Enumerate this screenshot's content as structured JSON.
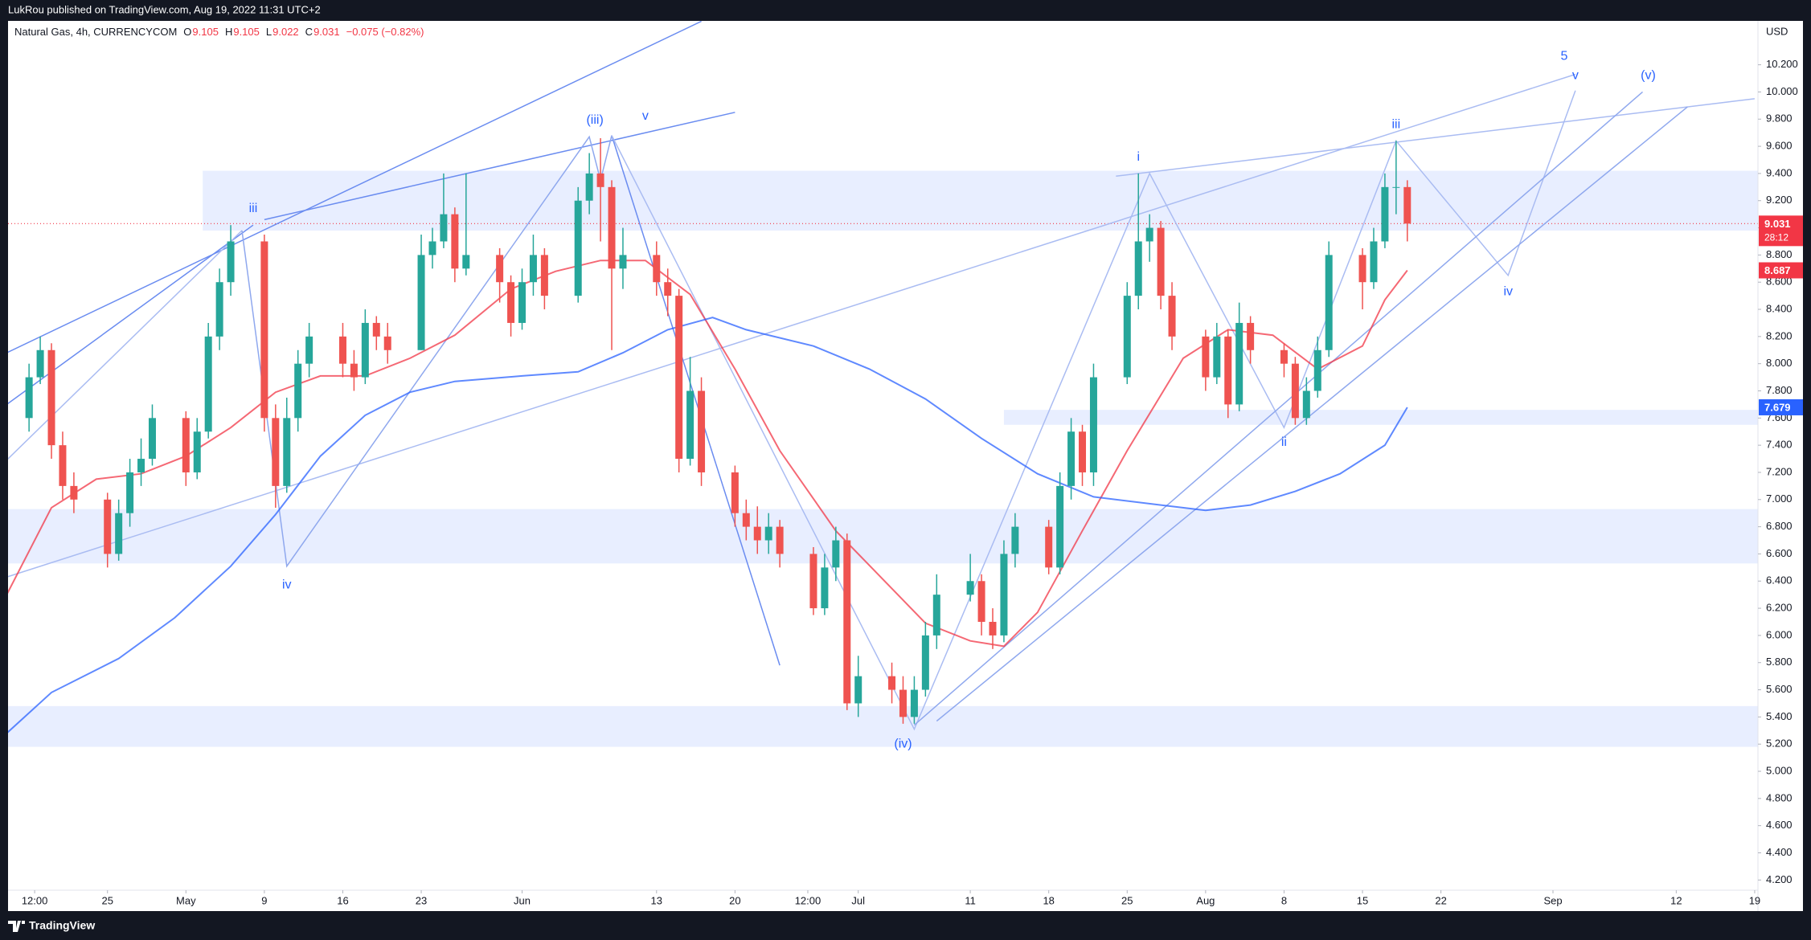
{
  "page": {
    "publisher": "LukRou published on TradingView.com, Aug 19, 2022 11:31 UTC+2",
    "brand": "TradingView"
  },
  "chart_data": {
    "type": "candlestick",
    "legend": {
      "symbol": "Natural Gas, 4h, CURRENCYCOM",
      "fields": [
        {
          "key": "O",
          "value": 9.105
        },
        {
          "key": "H",
          "value": 9.105
        },
        {
          "key": "L",
          "value": 9.022
        }
      ],
      "close_key": "C",
      "change": "−0.075 (−0.82%)"
    },
    "currency": "USD",
    "countdown": "28:12",
    "up_color": "#26a69a",
    "down_color": "#ef5350",
    "last_price_color": "#f23645",
    "xlim": [
      "2022-04-16T03:00",
      "2022-09-19T07:00"
    ],
    "ylim": [
      4.125,
      10.523
    ],
    "yticks": [
      {
        "value": 4.2,
        "label": "4.200"
      },
      {
        "value": 4.4,
        "label": "4.400"
      },
      {
        "value": 4.6,
        "label": "4.600"
      },
      {
        "value": 4.8,
        "label": "4.800"
      },
      {
        "value": 5.0,
        "label": "5.000"
      },
      {
        "value": 5.2,
        "label": "5.200"
      },
      {
        "value": 5.4,
        "label": "5.400"
      },
      {
        "value": 5.6,
        "label": "5.600"
      },
      {
        "value": 5.8,
        "label": "5.800"
      },
      {
        "value": 6.0,
        "label": "6.000"
      },
      {
        "value": 6.2,
        "label": "6.200"
      },
      {
        "value": 6.4,
        "label": "6.400"
      },
      {
        "value": 6.6,
        "label": "6.600"
      },
      {
        "value": 6.8,
        "label": "6.800"
      },
      {
        "value": 7.0,
        "label": "7.000"
      },
      {
        "value": 7.2,
        "label": "7.200"
      },
      {
        "value": 7.4,
        "label": "7.400"
      },
      {
        "value": 7.6,
        "label": "7.600"
      },
      {
        "value": 7.8,
        "label": "7.800"
      },
      {
        "value": 8.0,
        "label": "8.000"
      },
      {
        "value": 8.2,
        "label": "8.200"
      },
      {
        "value": 8.4,
        "label": "8.400"
      },
      {
        "value": 8.6,
        "label": "8.600"
      },
      {
        "value": 8.8,
        "label": "8.800"
      },
      {
        "value": 9.0,
        "label": "9.000"
      },
      {
        "value": 9.2,
        "label": "9.200"
      },
      {
        "value": 9.4,
        "label": "9.400"
      },
      {
        "value": 9.6,
        "label": "9.600"
      },
      {
        "value": 9.8,
        "label": "9.800"
      },
      {
        "value": 10.0,
        "label": "10.000"
      },
      {
        "value": 10.2,
        "label": "10.200"
      }
    ],
    "xticks": [
      {
        "value": "2022-04-18T12:00",
        "label": "12:00"
      },
      {
        "value": "2022-04-25",
        "label": "25"
      },
      {
        "value": "2022-05-02",
        "label": "May"
      },
      {
        "value": "2022-05-09",
        "label": "9"
      },
      {
        "value": "2022-05-16",
        "label": "16"
      },
      {
        "value": "2022-05-23",
        "label": "23"
      },
      {
        "value": "2022-06-01",
        "label": "Jun"
      },
      {
        "value": "2022-06-13",
        "label": "13"
      },
      {
        "value": "2022-06-20",
        "label": "20"
      },
      {
        "value": "2022-06-26T12:00",
        "label": "12:00"
      },
      {
        "value": "2022-07-01",
        "label": "Jul"
      },
      {
        "value": "2022-07-11",
        "label": "11"
      },
      {
        "value": "2022-07-18",
        "label": "18"
      },
      {
        "value": "2022-07-25",
        "label": "25"
      },
      {
        "value": "2022-08-01",
        "label": "Aug"
      },
      {
        "value": "2022-08-08",
        "label": "8"
      },
      {
        "value": "2022-08-15",
        "label": "15"
      },
      {
        "value": "2022-08-22",
        "label": "22"
      },
      {
        "value": "2022-09-01",
        "label": "Sep"
      },
      {
        "value": "2022-09-12",
        "label": "12"
      },
      {
        "value": "2022-09-19",
        "label": "19"
      }
    ],
    "x": [
      "2022-04-18",
      "2022-04-19",
      "2022-04-20",
      "2022-04-21",
      "2022-04-22",
      "2022-04-25",
      "2022-04-26",
      "2022-04-27",
      "2022-04-28",
      "2022-04-29",
      "2022-05-02",
      "2022-05-03",
      "2022-05-04",
      "2022-05-05",
      "2022-05-06",
      "2022-05-09",
      "2022-05-10",
      "2022-05-11",
      "2022-05-12",
      "2022-05-13",
      "2022-05-16",
      "2022-05-17",
      "2022-05-18",
      "2022-05-19",
      "2022-05-20",
      "2022-05-23",
      "2022-05-24",
      "2022-05-25",
      "2022-05-26",
      "2022-05-27",
      "2022-05-30",
      "2022-05-31",
      "2022-06-01",
      "2022-06-02",
      "2022-06-03",
      "2022-06-06",
      "2022-06-07",
      "2022-06-08",
      "2022-06-09",
      "2022-06-10",
      "2022-06-13",
      "2022-06-14",
      "2022-06-15",
      "2022-06-16",
      "2022-06-17",
      "2022-06-20",
      "2022-06-21",
      "2022-06-22",
      "2022-06-23",
      "2022-06-24",
      "2022-06-27",
      "2022-06-28",
      "2022-06-29",
      "2022-06-30",
      "2022-07-01",
      "2022-07-04",
      "2022-07-05",
      "2022-07-06",
      "2022-07-07",
      "2022-07-08",
      "2022-07-11",
      "2022-07-12",
      "2022-07-13",
      "2022-07-14",
      "2022-07-15",
      "2022-07-18",
      "2022-07-19",
      "2022-07-20",
      "2022-07-21",
      "2022-07-22",
      "2022-07-25",
      "2022-07-26",
      "2022-07-27",
      "2022-07-28",
      "2022-07-29",
      "2022-08-01",
      "2022-08-02",
      "2022-08-03",
      "2022-08-04",
      "2022-08-05",
      "2022-08-08",
      "2022-08-09",
      "2022-08-10",
      "2022-08-11",
      "2022-08-12",
      "2022-08-15",
      "2022-08-16",
      "2022-08-17",
      "2022-08-18",
      "2022-08-19"
    ],
    "open": [
      7.6,
      7.9,
      8.1,
      7.4,
      7.1,
      7.0,
      6.6,
      6.9,
      7.2,
      7.3,
      7.6,
      7.2,
      7.5,
      8.2,
      8.6,
      8.9,
      7.6,
      7.1,
      7.6,
      8.0,
      8.2,
      8.0,
      7.9,
      8.3,
      8.2,
      8.1,
      8.8,
      8.9,
      9.1,
      8.7,
      8.8,
      8.6,
      8.3,
      8.6,
      8.8,
      8.5,
      9.2,
      9.4,
      9.3,
      8.7,
      8.8,
      8.6,
      8.5,
      7.3,
      7.8,
      7.2,
      6.9,
      6.8,
      6.7,
      6.8,
      6.6,
      6.2,
      6.5,
      6.7,
      5.5,
      5.7,
      5.6,
      5.4,
      5.6,
      6.0,
      6.3,
      6.4,
      6.1,
      6.0,
      6.6,
      6.8,
      6.5,
      7.1,
      7.5,
      7.2,
      7.9,
      8.5,
      8.9,
      9.0,
      8.5,
      8.2,
      7.9,
      8.2,
      7.7,
      8.3,
      8.1,
      8.0,
      7.6,
      7.8,
      8.1,
      8.8,
      8.6,
      8.9,
      9.3,
      9.3
    ],
    "high": [
      8.0,
      8.2,
      8.15,
      7.5,
      7.2,
      7.05,
      7.0,
      7.3,
      7.45,
      7.7,
      7.65,
      7.6,
      8.3,
      8.7,
      9.02,
      8.95,
      7.7,
      7.75,
      8.1,
      8.3,
      8.3,
      8.1,
      8.4,
      8.35,
      8.3,
      8.95,
      9.0,
      9.4,
      9.15,
      9.4,
      8.85,
      8.65,
      8.7,
      8.95,
      8.85,
      9.3,
      9.55,
      9.66,
      9.35,
      9.0,
      8.9,
      8.7,
      8.55,
      8.05,
      7.9,
      7.25,
      7.0,
      6.95,
      6.9,
      6.85,
      6.65,
      6.6,
      6.8,
      6.75,
      5.85,
      5.8,
      5.7,
      5.7,
      6.1,
      6.45,
      6.6,
      6.45,
      6.2,
      6.7,
      6.9,
      6.85,
      7.2,
      7.6,
      7.55,
      8.0,
      8.6,
      9.4,
      9.1,
      9.05,
      8.6,
      8.25,
      8.3,
      8.25,
      8.45,
      8.35,
      8.15,
      8.05,
      7.9,
      8.2,
      8.9,
      8.85,
      9.0,
      9.4,
      9.64,
      9.35
    ],
    "low": [
      7.5,
      7.85,
      7.3,
      7.0,
      6.9,
      6.5,
      6.55,
      6.8,
      7.1,
      7.25,
      7.1,
      7.15,
      7.45,
      8.1,
      8.5,
      7.5,
      6.94,
      7.05,
      7.5,
      7.9,
      7.9,
      7.8,
      7.85,
      8.1,
      8.0,
      8.1,
      8.7,
      8.85,
      8.6,
      8.65,
      8.45,
      8.2,
      8.25,
      8.5,
      8.4,
      8.45,
      9.1,
      8.9,
      8.1,
      8.55,
      8.5,
      8.35,
      7.2,
      7.25,
      7.1,
      6.8,
      6.7,
      6.6,
      6.6,
      6.5,
      6.15,
      6.15,
      6.4,
      5.45,
      5.4,
      5.5,
      5.35,
      5.35,
      5.55,
      5.9,
      6.25,
      6.0,
      5.9,
      5.95,
      6.5,
      6.45,
      6.45,
      7.0,
      7.1,
      7.1,
      7.85,
      8.4,
      8.75,
      8.4,
      8.1,
      7.8,
      7.85,
      7.6,
      7.65,
      8.0,
      7.9,
      7.55,
      7.55,
      7.75,
      8.05,
      8.4,
      8.55,
      8.85,
      9.1,
      8.9
    ],
    "close": [
      7.9,
      8.1,
      7.4,
      7.1,
      7.0,
      6.6,
      6.9,
      7.2,
      7.3,
      7.6,
      7.2,
      7.5,
      8.2,
      8.6,
      8.9,
      7.6,
      7.1,
      7.6,
      8.0,
      8.2,
      8.0,
      7.9,
      8.3,
      8.2,
      8.1,
      8.8,
      8.9,
      9.1,
      8.7,
      8.8,
      8.6,
      8.3,
      8.6,
      8.8,
      8.5,
      9.2,
      9.4,
      9.3,
      8.7,
      8.8,
      8.6,
      8.5,
      7.3,
      7.8,
      7.2,
      6.9,
      6.8,
      6.7,
      6.8,
      6.6,
      6.2,
      6.5,
      6.7,
      5.5,
      5.7,
      5.6,
      5.4,
      5.6,
      6.0,
      6.3,
      6.4,
      6.1,
      6.0,
      6.6,
      6.8,
      6.5,
      7.1,
      7.5,
      7.2,
      7.9,
      8.5,
      8.9,
      9.0,
      8.5,
      8.2,
      7.9,
      8.2,
      7.7,
      8.3,
      8.1,
      8.0,
      7.6,
      7.8,
      8.1,
      8.8,
      8.6,
      8.9,
      9.3,
      9.3,
      9.031
    ],
    "moving_averages": [
      {
        "color": "#f23645",
        "x": [
          "2022-04-16",
          "2022-04-20",
          "2022-04-24",
          "2022-04-28",
          "2022-05-02",
          "2022-05-06",
          "2022-05-10",
          "2022-05-14",
          "2022-05-18",
          "2022-05-22",
          "2022-05-26",
          "2022-05-31",
          "2022-06-04",
          "2022-06-08",
          "2022-06-12",
          "2022-06-16",
          "2022-06-20",
          "2022-06-24",
          "2022-06-29",
          "2022-07-03",
          "2022-07-07",
          "2022-07-11",
          "2022-07-14",
          "2022-07-17",
          "2022-07-21",
          "2022-07-25",
          "2022-07-30",
          "2022-08-03",
          "2022-08-07",
          "2022-08-11",
          "2022-08-15",
          "2022-08-17",
          "2022-08-19"
        ],
        "values": [
          6.3,
          6.94,
          7.15,
          7.19,
          7.32,
          7.53,
          7.79,
          7.91,
          7.91,
          8.04,
          8.21,
          8.55,
          8.68,
          8.76,
          8.76,
          8.51,
          7.96,
          7.36,
          6.77,
          6.43,
          6.09,
          5.96,
          5.92,
          6.17,
          6.77,
          7.36,
          8.04,
          8.25,
          8.21,
          7.96,
          8.13,
          8.47,
          8.687
        ]
      },
      {
        "color": "#2962ff",
        "x": [
          "2022-04-16",
          "2022-04-20",
          "2022-04-26",
          "2022-05-01",
          "2022-05-06",
          "2022-05-10",
          "2022-05-14",
          "2022-05-18",
          "2022-05-22",
          "2022-05-26",
          "2022-06-01",
          "2022-06-06",
          "2022-06-10",
          "2022-06-14",
          "2022-06-18",
          "2022-06-21",
          "2022-06-27",
          "2022-07-02",
          "2022-07-07",
          "2022-07-12",
          "2022-07-17",
          "2022-07-22",
          "2022-07-28",
          "2022-08-01",
          "2022-08-05",
          "2022-08-09",
          "2022-08-13",
          "2022-08-17",
          "2022-08-19"
        ],
        "values": [
          5.28,
          5.58,
          5.83,
          6.13,
          6.51,
          6.89,
          7.32,
          7.62,
          7.79,
          7.87,
          7.91,
          7.94,
          8.08,
          8.25,
          8.34,
          8.25,
          8.13,
          7.96,
          7.74,
          7.45,
          7.19,
          7.02,
          6.96,
          6.92,
          6.96,
          7.06,
          7.19,
          7.4,
          7.679
        ]
      }
    ],
    "zones": [
      {
        "color": "rgba(41,98,255,0.11)",
        "x1": "2022-05-03T12:00",
        "y": [
          8.98,
          9.42
        ]
      },
      {
        "color": "rgba(41,98,255,0.11)",
        "y": [
          6.53,
          6.93
        ]
      },
      {
        "color": "rgba(41,98,255,0.11)",
        "y": [
          5.18,
          5.48
        ]
      },
      {
        "color": "rgba(41,98,255,0.11)",
        "x1": "2022-07-14",
        "y": [
          7.55,
          7.66
        ]
      }
    ],
    "drawings": [
      {
        "color": "#6a8cf0",
        "x": [
          "2022-04-16",
          "2022-06-17"
        ],
        "y": [
          8.08,
          10.52
        ]
      },
      {
        "color": "#6a8cf0",
        "x": [
          "2022-04-16",
          "2022-05-08"
        ],
        "y": [
          7.7,
          9.02
        ]
      },
      {
        "color": "#6a8cf0",
        "x": [
          "2022-05-09",
          "2022-06-20"
        ],
        "y": [
          9.06,
          9.85
        ]
      },
      {
        "color": "#aabcf2",
        "x": [
          "2022-04-16",
          "2022-09-03"
        ],
        "y": [
          6.43,
          10.13
        ]
      },
      {
        "color": "#aabcf2",
        "x": [
          "2022-04-16",
          "2022-05-07"
        ],
        "y": [
          7.29,
          8.98
        ]
      },
      {
        "color": "#8fa8ee",
        "x": [
          "2022-05-07",
          "2022-05-11",
          "2022-06-07",
          "2022-06-08",
          "2022-06-09"
        ],
        "y": [
          8.98,
          6.51,
          9.67,
          9.35,
          9.68
        ]
      },
      {
        "color": "#6a8cf0",
        "x": [
          "2022-06-09",
          "2022-06-24"
        ],
        "y": [
          9.68,
          5.78
        ]
      },
      {
        "color": "#aabcf2",
        "x": [
          "2022-06-09",
          "2022-07-06",
          "2022-07-27",
          "2022-08-08",
          "2022-08-18",
          "2022-08-28",
          "2022-09-03"
        ],
        "y": [
          9.68,
          5.31,
          9.4,
          7.53,
          9.64,
          8.65,
          10.01
        ]
      },
      {
        "color": "#aabcf2",
        "x": [
          "2022-07-24",
          "2022-09-19"
        ],
        "y": [
          9.38,
          9.95
        ]
      },
      {
        "color": "#8fa8ee",
        "x": [
          "2022-07-08",
          "2022-09-13"
        ],
        "y": [
          5.37,
          9.89
        ]
      },
      {
        "color": "#8fa8ee",
        "x": [
          "2022-07-06",
          "2022-09-09"
        ],
        "y": [
          5.34,
          10.0
        ]
      }
    ],
    "annotation_color": "#2962ff",
    "annotations": [
      {
        "text": "iii",
        "x": "2022-05-08",
        "y": 9.14
      },
      {
        "text": "iv",
        "x": "2022-05-11",
        "y": 6.37
      },
      {
        "text": "(iii)",
        "x": "2022-06-07T12:00",
        "y": 9.79
      },
      {
        "text": "v",
        "x": "2022-06-12",
        "y": 9.82
      },
      {
        "text": "(iv)",
        "x": "2022-07-05",
        "y": 5.2
      },
      {
        "text": "i",
        "x": "2022-07-26",
        "y": 9.52
      },
      {
        "text": "ii",
        "x": "2022-08-08",
        "y": 7.42
      },
      {
        "text": "iii",
        "x": "2022-08-18",
        "y": 9.76
      },
      {
        "text": "iv",
        "x": "2022-08-28",
        "y": 8.53
      },
      {
        "text": "v",
        "x": "2022-09-03",
        "y": 10.12
      },
      {
        "text": "(v)",
        "x": "2022-09-09T12:00",
        "y": 10.12
      },
      {
        "text": "5",
        "x": "2022-09-02",
        "y": 10.26
      }
    ]
  }
}
